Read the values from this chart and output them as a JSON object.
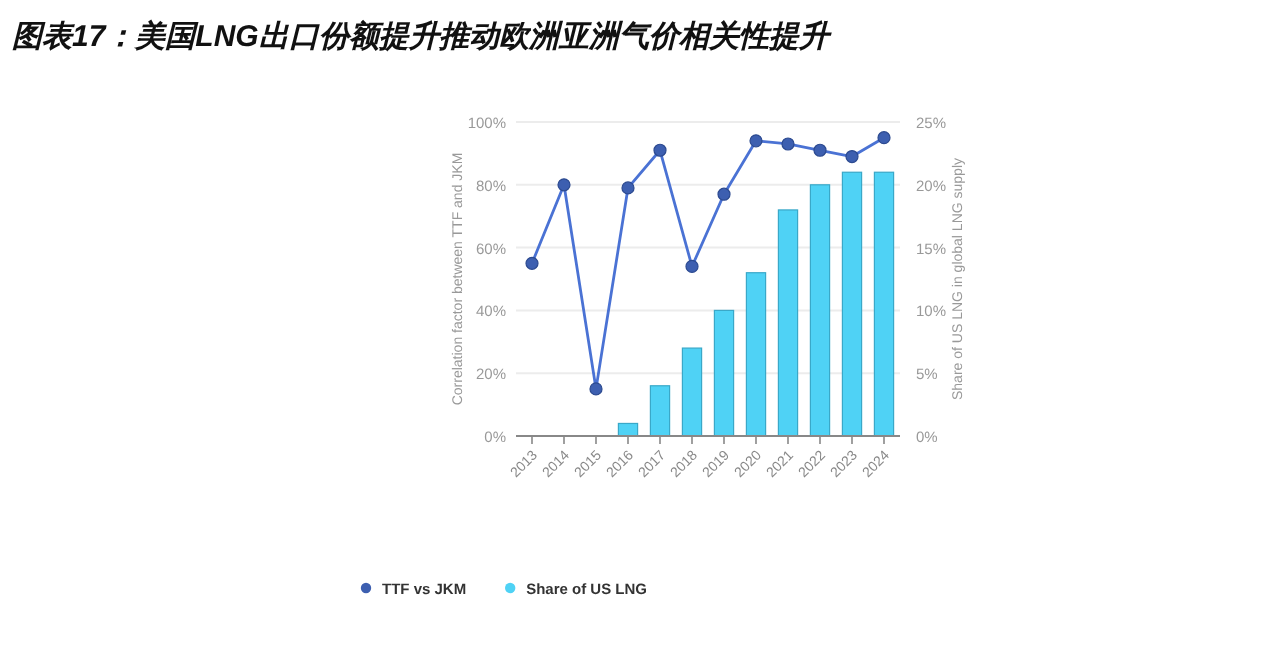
{
  "chart_data": {
    "type": "bar",
    "title": "图表17：美国LNG出口份额提升推动欧洲亚洲气价相关性提升",
    "ylabel": "Correlation factor between TTF and JKM",
    "y2label": "Share of US LNG in global LNG supply",
    "categories": [
      "2013",
      "2014",
      "2015",
      "2016",
      "2017",
      "2018",
      "2019",
      "2020",
      "2021",
      "2022",
      "2023",
      "2024"
    ],
    "series": [
      {
        "name": "TTF vs JKM",
        "type": "line",
        "color": "#4a72d4",
        "marker": "circle",
        "values": [
          55,
          80,
          15,
          79,
          91,
          54,
          77,
          94,
          93,
          91,
          89,
          95
        ]
      },
      {
        "name": "Share of US LNG",
        "axis": "y2",
        "color": "#4fd2f5",
        "values": [
          0,
          0,
          0,
          1,
          4,
          7,
          10,
          13,
          18,
          20,
          21,
          21
        ]
      }
    ],
    "ylim": [
      0,
      100
    ],
    "yticks": [
      {
        "value": 0,
        "label": "0%"
      },
      {
        "value": 20,
        "label": "20%"
      },
      {
        "value": 40,
        "label": "40%"
      },
      {
        "value": 60,
        "label": "60%"
      },
      {
        "value": 80,
        "label": "80%"
      },
      {
        "value": 100,
        "label": "100%"
      }
    ],
    "y2lim": [
      0,
      25
    ],
    "y2ticks": [
      {
        "value": 0,
        "label": "0%"
      },
      {
        "value": 5,
        "label": "5%"
      },
      {
        "value": 10,
        "label": "10%"
      },
      {
        "value": 15,
        "label": "15%"
      },
      {
        "value": 20,
        "label": "20%"
      },
      {
        "value": 25,
        "label": "25%"
      }
    ],
    "grid": "y",
    "legend": "bottom"
  }
}
